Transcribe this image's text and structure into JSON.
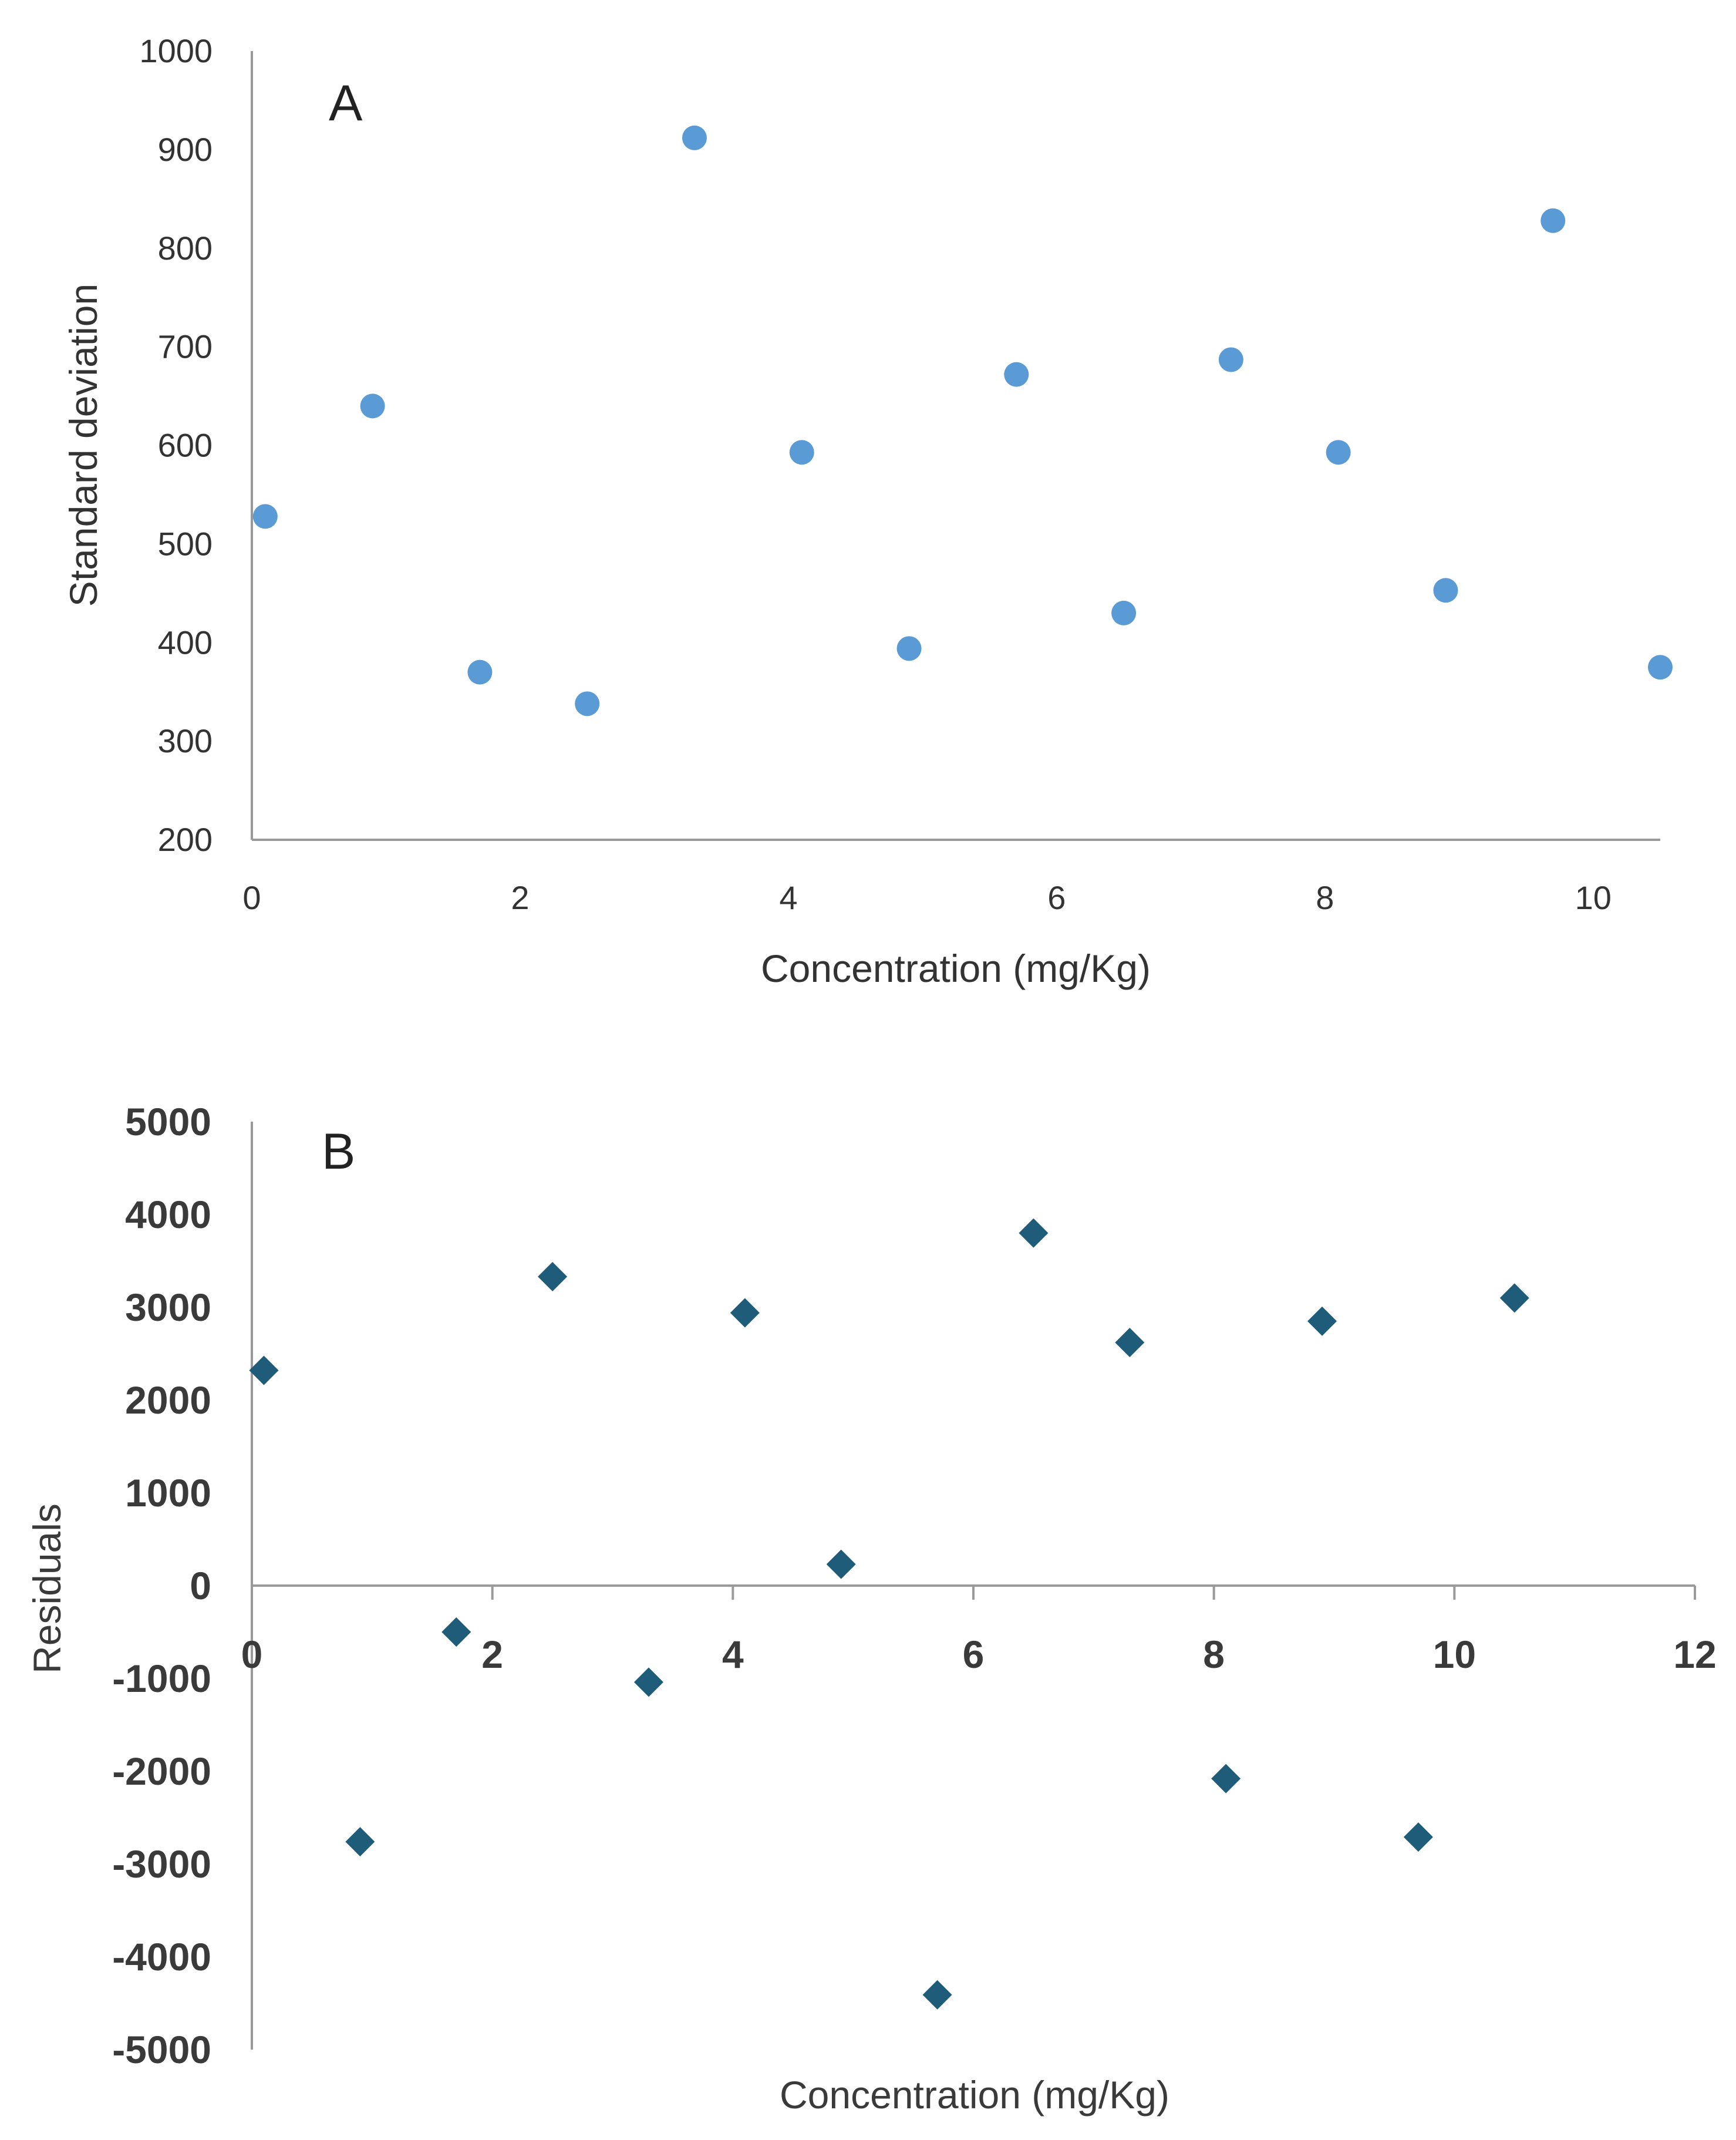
{
  "chart_data": [
    {
      "type": "scatter",
      "panel_label": "A",
      "title": "",
      "xlabel": "Concentration (mg/Kg)",
      "ylabel": "Standard deviation",
      "xlim": [
        0,
        10.5
      ],
      "ylim": [
        200,
        1000
      ],
      "xticks": [
        0,
        2,
        4,
        6,
        8,
        10
      ],
      "yticks": [
        200,
        300,
        400,
        500,
        600,
        700,
        800,
        900,
        1000
      ],
      "marker": "circle",
      "color": "#5b9bd5",
      "series": [
        {
          "name": "Standard deviation",
          "x": [
            0.1,
            0.9,
            1.7,
            2.5,
            3.3,
            4.1,
            4.9,
            5.7,
            6.5,
            7.3,
            8.1,
            8.9,
            9.7,
            10.5
          ],
          "y": [
            528,
            640,
            370,
            338,
            912,
            593,
            394,
            672,
            430,
            687,
            593,
            453,
            828,
            375
          ]
        }
      ]
    },
    {
      "type": "scatter",
      "panel_label": "B",
      "title": "",
      "xlabel": "Concentration (mg/Kg)",
      "ylabel": "Residuals",
      "xlim": [
        0,
        12
      ],
      "ylim": [
        -5000,
        5000
      ],
      "xticks": [
        0,
        2,
        4,
        6,
        8,
        10,
        12
      ],
      "yticks": [
        -5000,
        -4000,
        -3000,
        -2000,
        -1000,
        0,
        1000,
        2000,
        3000,
        4000,
        5000
      ],
      "marker": "diamond",
      "color": "#1f5c7a",
      "series": [
        {
          "name": "Residuals",
          "x": [
            0.1,
            0.9,
            1.7,
            2.5,
            3.3,
            4.1,
            4.9,
            5.7,
            6.5,
            7.3,
            8.1,
            8.9,
            9.7,
            10.5
          ],
          "y": [
            2320,
            -2760,
            -500,
            3330,
            -1040,
            2940,
            230,
            -4410,
            3800,
            2620,
            -2080,
            2850,
            -2710,
            3100
          ]
        }
      ]
    }
  ]
}
